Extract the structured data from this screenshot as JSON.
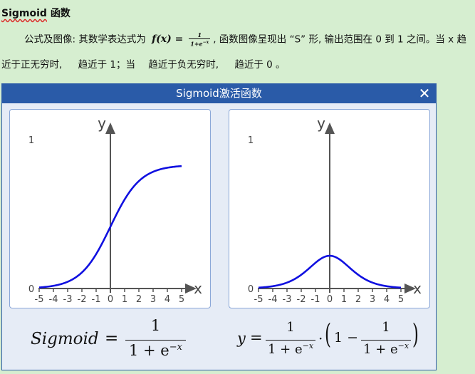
{
  "heading": {
    "term": "Sigmoid",
    "suffix": "函数"
  },
  "paragraph": {
    "part1": "公式及图像: 其数学表达式为",
    "formula_lhs": "f(x) =",
    "formula_num": "1",
    "formula_den": "1+e",
    "formula_den_exp": "−x",
    "part2": ", 函数图像呈现出 “S” 形, 输出范围在 0 到 1 之间。当 x 趋近于正无穷时,",
    "part3": "趋近于 1；当",
    "part4": "趋近于负无穷时,",
    "part5": "趋近于 0 。"
  },
  "window": {
    "title": "Sigmoid激活函数",
    "close_symbol": "✕"
  },
  "plots": {
    "y_axis_label": "y",
    "x_axis_label": "x",
    "y_tick_top": "1",
    "y_tick_bottom": "0",
    "x_ticks": [
      "-5",
      "-4",
      "-3",
      "-2",
      "-1",
      "0",
      "1",
      "2",
      "3",
      "4",
      "5"
    ],
    "curve_color": "#1010e0",
    "axis_color": "#555555",
    "left": {
      "function": "sigmoid"
    },
    "right": {
      "function": "sigmoid-derivative"
    }
  },
  "equations": {
    "left_lhs": "Sigmoid",
    "left_eq": "=",
    "left_num": "1",
    "left_den_base": "1 + e",
    "left_den_exp": "−x",
    "right_lhs": "y",
    "right_eq": "=",
    "right_num": "1",
    "right_den_base": "1 + e",
    "right_den_exp": "−x",
    "right_dot": "·",
    "right_paren_l": "(",
    "right_one_minus": "1 −",
    "right_num2": "1",
    "right_den2_base": "1 + e",
    "right_den2_exp": "−x",
    "right_paren_r": ")"
  }
}
